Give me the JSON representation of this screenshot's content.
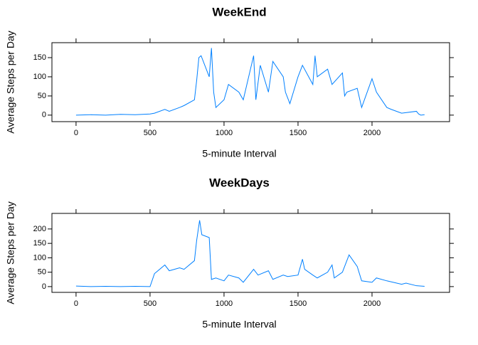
{
  "chart_data": [
    {
      "type": "line",
      "title": "WeekEnd",
      "x_label": "5-minute Interval",
      "y_label": "Average Steps per Day",
      "color": "#0080ff",
      "x": [
        0,
        100,
        200,
        300,
        400,
        500,
        530,
        600,
        630,
        700,
        730,
        800,
        815,
        830,
        845,
        900,
        915,
        930,
        945,
        1000,
        1030,
        1100,
        1130,
        1200,
        1215,
        1245,
        1300,
        1330,
        1400,
        1415,
        1445,
        1500,
        1530,
        1600,
        1615,
        1630,
        1700,
        1730,
        1800,
        1815,
        1830,
        1900,
        1930,
        2000,
        2030,
        2100,
        2130,
        2200,
        2300,
        2315,
        2330,
        2355
      ],
      "values": [
        0,
        1,
        0,
        2,
        1,
        3,
        5,
        15,
        10,
        20,
        25,
        40,
        90,
        150,
        155,
        100,
        175,
        60,
        20,
        40,
        80,
        60,
        40,
        155,
        40,
        130,
        60,
        140,
        100,
        60,
        30,
        100,
        130,
        80,
        155,
        100,
        120,
        80,
        110,
        50,
        60,
        70,
        20,
        95,
        60,
        20,
        15,
        5,
        10,
        3,
        0,
        1
      ],
      "xlim": [
        -163,
        2524
      ],
      "ylim": [
        -17,
        189
      ],
      "xticks": [
        0,
        500,
        1000,
        1500,
        2000
      ],
      "yticks": [
        0,
        50,
        100,
        150
      ]
    },
    {
      "type": "line",
      "title": "WeekDays",
      "x_label": "5-minute Interval",
      "y_label": "Average Steps per Day",
      "color": "#0080ff",
      "x": [
        0,
        100,
        200,
        300,
        400,
        500,
        530,
        600,
        630,
        700,
        730,
        800,
        815,
        835,
        850,
        900,
        915,
        945,
        1000,
        1030,
        1100,
        1130,
        1200,
        1230,
        1300,
        1330,
        1400,
        1430,
        1500,
        1530,
        1545,
        1600,
        1630,
        1700,
        1730,
        1745,
        1800,
        1845,
        1900,
        1930,
        2000,
        2030,
        2100,
        2200,
        2230,
        2300,
        2355
      ],
      "values": [
        2,
        0,
        1,
        0,
        1,
        0,
        45,
        75,
        55,
        65,
        60,
        90,
        160,
        230,
        180,
        170,
        25,
        30,
        20,
        40,
        30,
        15,
        60,
        40,
        55,
        25,
        40,
        35,
        40,
        95,
        60,
        40,
        30,
        50,
        75,
        30,
        50,
        110,
        70,
        20,
        15,
        30,
        20,
        8,
        12,
        3,
        1
      ],
      "xlim": [
        -163,
        2524
      ],
      "ylim": [
        -20,
        254
      ],
      "xticks": [
        0,
        500,
        1000,
        1500,
        2000
      ],
      "yticks": [
        0,
        50,
        100,
        150,
        200
      ]
    }
  ]
}
